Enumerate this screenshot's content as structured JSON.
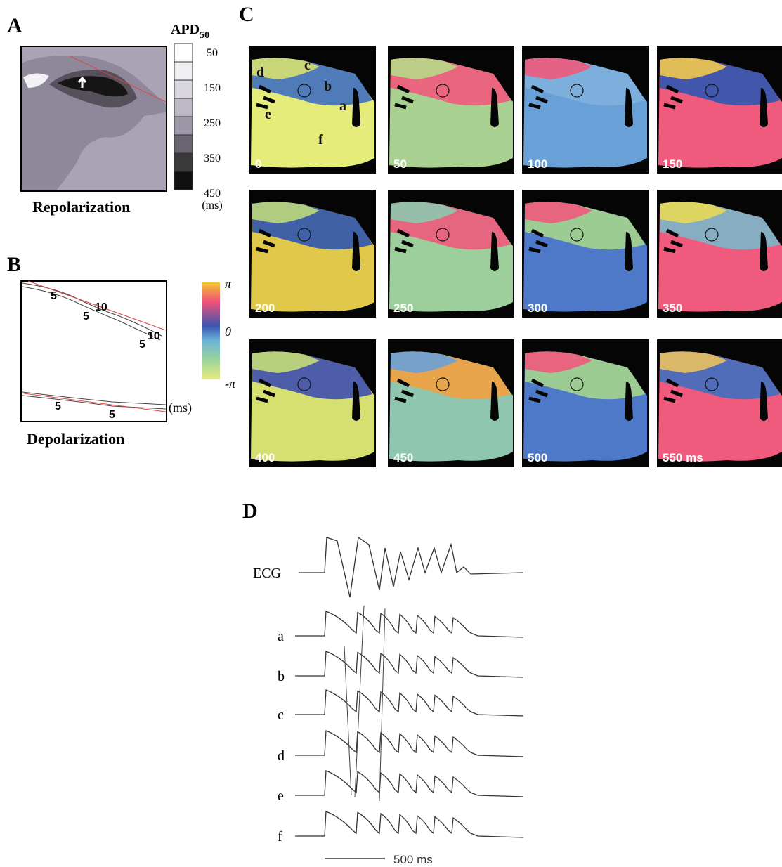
{
  "panels": {
    "A": {
      "label": "A",
      "colorbar_title": "APD",
      "colorbar_subscript": "50",
      "colorbar_ticks": [
        "50",
        "150",
        "250",
        "350",
        "450"
      ],
      "colorbar_unit": "(ms)",
      "caption": "Repolarization"
    },
    "B": {
      "label": "B",
      "contour_labels": [
        "5",
        "10",
        "5",
        "5",
        "10",
        "5",
        "5"
      ],
      "unit": "(ms)",
      "caption": "Depolarization",
      "phase_ticks": [
        "π",
        "0",
        "-π"
      ]
    },
    "C": {
      "label": "C",
      "site_labels": [
        "a",
        "b",
        "c",
        "d",
        "e",
        "f"
      ],
      "frames": [
        "0",
        "50",
        "100",
        "150",
        "200",
        "250",
        "300",
        "350",
        "400",
        "450",
        "500",
        "550 ms"
      ]
    },
    "D": {
      "label": "D",
      "traces": [
        "ECG",
        "a",
        "b",
        "c",
        "d",
        "e",
        "f"
      ],
      "scale_bar": "500 ms"
    }
  }
}
